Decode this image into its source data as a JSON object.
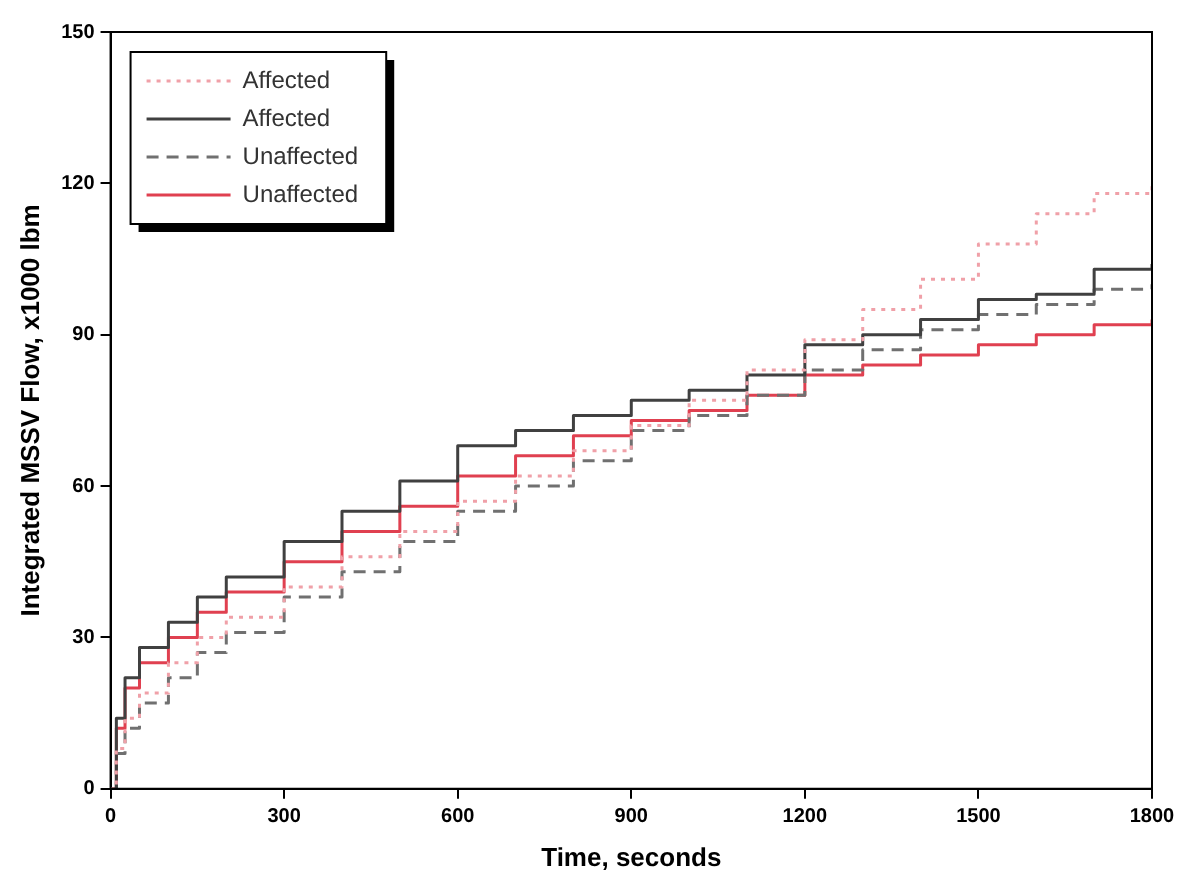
{
  "chart_data": {
    "type": "step",
    "xlabel": "Time, seconds",
    "ylabel": "Integrated MSSV Flow, x1000 lbm",
    "x": [
      0,
      10,
      25,
      50,
      100,
      150,
      200,
      300,
      400,
      500,
      600,
      700,
      800,
      900,
      1000,
      1100,
      1200,
      1300,
      1400,
      1500,
      1600,
      1700,
      1800
    ],
    "xlim": [
      0,
      1800
    ],
    "xticks": [
      0,
      300,
      600,
      900,
      1200,
      1500,
      1800
    ],
    "ylim": [
      0,
      150
    ],
    "yticks": [
      0,
      30,
      60,
      90,
      120,
      150
    ],
    "grid": false,
    "legend": "top left",
    "marker": "none",
    "series": [
      {
        "name": "Affected",
        "color": "#f0a0a8",
        "line_style": "dotted",
        "values": [
          0,
          8,
          14,
          19,
          25,
          30,
          34,
          40,
          46,
          51,
          57,
          62,
          67,
          72,
          77,
          83,
          89,
          95,
          101,
          108,
          114,
          118,
          120
        ]
      },
      {
        "name": "Affected",
        "color": "#404040",
        "line_style": "solid",
        "values": [
          0,
          14,
          22,
          28,
          33,
          38,
          42,
          49,
          55,
          61,
          68,
          71,
          74,
          77,
          79,
          82,
          88,
          90,
          93,
          97,
          98,
          103,
          104
        ]
      },
      {
        "name": "Unaffected",
        "color": "#707070",
        "line_style": "dashed",
        "values": [
          0,
          7,
          12,
          17,
          22,
          27,
          31,
          38,
          43,
          49,
          55,
          60,
          65,
          71,
          74,
          78,
          83,
          87,
          91,
          94,
          96,
          99,
          100
        ]
      },
      {
        "name": "Unaffected",
        "color": "#e04050",
        "line_style": "solid",
        "values": [
          0,
          12,
          20,
          25,
          30,
          35,
          39,
          45,
          51,
          56,
          62,
          66,
          70,
          73,
          75,
          78,
          82,
          84,
          86,
          88,
          90,
          92,
          93
        ]
      }
    ]
  }
}
